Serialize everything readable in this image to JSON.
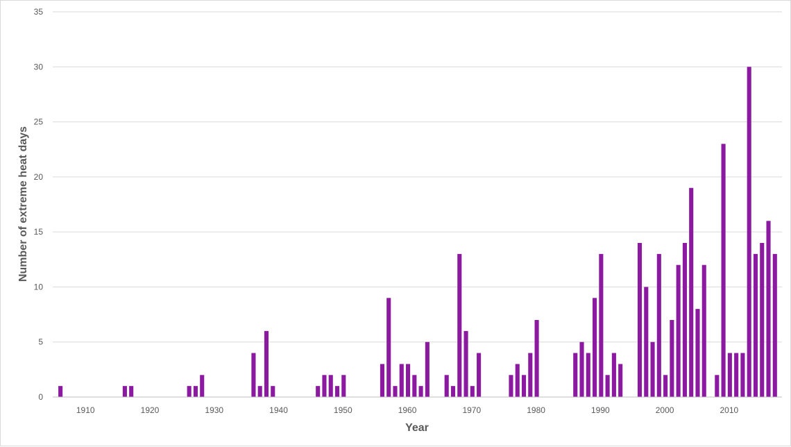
{
  "chart_data": {
    "type": "bar",
    "title": "",
    "xlabel": "Year",
    "ylabel": "Number of extreme heat days",
    "ylim": [
      0,
      35
    ],
    "yticks": [
      0,
      5,
      10,
      15,
      20,
      25,
      30,
      35
    ],
    "xticks": [
      1910,
      1920,
      1930,
      1940,
      1950,
      1960,
      1970,
      1980,
      1990,
      2000,
      2010
    ],
    "xrange": [
      1905,
      2014
    ],
    "grid": true,
    "legend": "none",
    "bar_color": "#8b1aa0",
    "series": [
      {
        "points": [
          {
            "x": 1906,
            "y": 1
          },
          {
            "x": 1916,
            "y": 1
          },
          {
            "x": 1917,
            "y": 1
          },
          {
            "x": 1926,
            "y": 1
          },
          {
            "x": 1927,
            "y": 1
          },
          {
            "x": 1928,
            "y": 2
          },
          {
            "x": 1936,
            "y": 4
          },
          {
            "x": 1937,
            "y": 1
          },
          {
            "x": 1938,
            "y": 6
          },
          {
            "x": 1939,
            "y": 1
          },
          {
            "x": 1946,
            "y": 1
          },
          {
            "x": 1947,
            "y": 2
          },
          {
            "x": 1948,
            "y": 2
          },
          {
            "x": 1949,
            "y": 1
          },
          {
            "x": 1950,
            "y": 2
          },
          {
            "x": 1956,
            "y": 3
          },
          {
            "x": 1957,
            "y": 9
          },
          {
            "x": 1958,
            "y": 1
          },
          {
            "x": 1959,
            "y": 3
          },
          {
            "x": 1960,
            "y": 3
          },
          {
            "x": 1961,
            "y": 2
          },
          {
            "x": 1962,
            "y": 1
          },
          {
            "x": 1963,
            "y": 5
          },
          {
            "x": 1966,
            "y": 2
          },
          {
            "x": 1967,
            "y": 1
          },
          {
            "x": 1968,
            "y": 13
          },
          {
            "x": 1969,
            "y": 6
          },
          {
            "x": 1970,
            "y": 1
          },
          {
            "x": 1971,
            "y": 4
          },
          {
            "x": 1976,
            "y": 2
          },
          {
            "x": 1977,
            "y": 3
          },
          {
            "x": 1978,
            "y": 2
          },
          {
            "x": 1979,
            "y": 4
          },
          {
            "x": 1980,
            "y": 7
          },
          {
            "x": 1986,
            "y": 4
          },
          {
            "x": 1987,
            "y": 5
          },
          {
            "x": 1988,
            "y": 4
          },
          {
            "x": 1989,
            "y": 9
          },
          {
            "x": 1990,
            "y": 13
          },
          {
            "x": 1991,
            "y": 2
          },
          {
            "x": 1992,
            "y": 4
          },
          {
            "x": 1993,
            "y": 3
          },
          {
            "x": 1996,
            "y": 14
          },
          {
            "x": 1997,
            "y": 10
          },
          {
            "x": 1998,
            "y": 5
          },
          {
            "x": 1999,
            "y": 13
          },
          {
            "x": 2000,
            "y": 2
          },
          {
            "x": 2001,
            "y": 7
          },
          {
            "x": 2002,
            "y": 12
          },
          {
            "x": 2003,
            "y": 14
          },
          {
            "x": 2004,
            "y": 19
          },
          {
            "x": 2005,
            "y": 8
          },
          {
            "x": 2006,
            "y": 12
          },
          {
            "x": 2008,
            "y": 2
          },
          {
            "x": 2009,
            "y": 23
          },
          {
            "x": 2010,
            "y": 4
          },
          {
            "x": 2011,
            "y": 4
          },
          {
            "x": 2012,
            "y": 4
          },
          {
            "x": 2013,
            "y": 30
          },
          {
            "x": 2014,
            "y": 13
          },
          {
            "x": 2015,
            "y": 14
          },
          {
            "x": 2016,
            "y": 16
          },
          {
            "x": 2017,
            "y": 13
          }
        ]
      }
    ]
  }
}
